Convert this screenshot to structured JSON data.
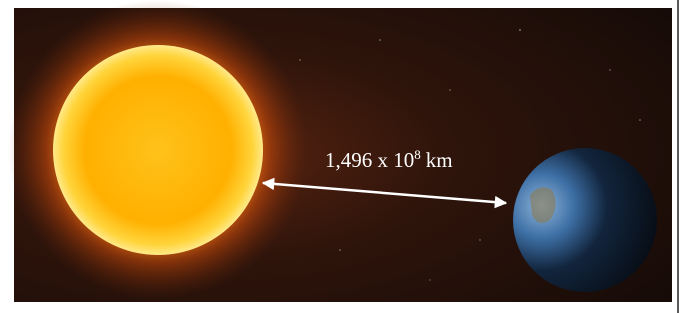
{
  "label": {
    "base": "1,496 x 10",
    "exponent": "8",
    "unit": "km"
  }
}
